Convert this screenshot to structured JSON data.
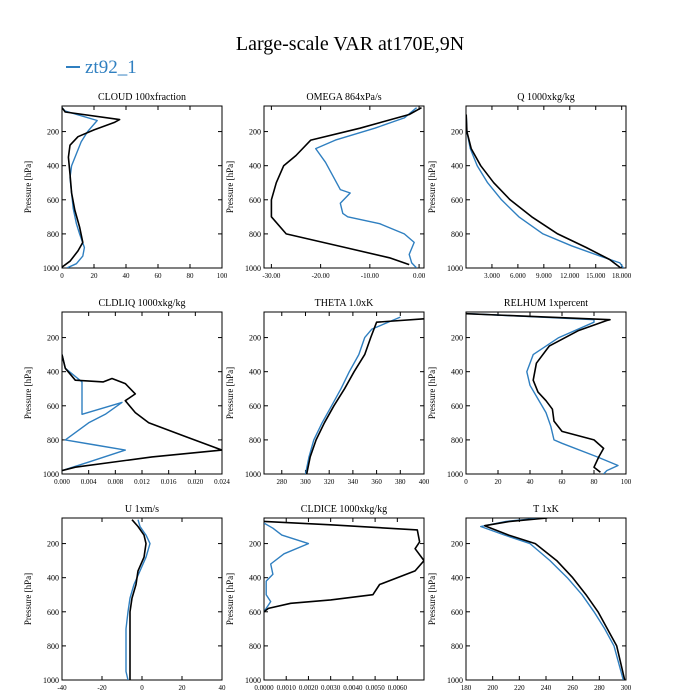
{
  "page_title": "Large-scale VAR at170E,9N",
  "legend": {
    "label": "zt92_1",
    "color": "#2f7fc0"
  },
  "colors": {
    "series_1": "#2f7fc0",
    "series_2": "#000000"
  },
  "chart_data": [
    {
      "type": "line",
      "title": "CLOUD  100xfraction",
      "ylabel": "Pressure [hPa]",
      "xlim": [
        0,
        100
      ],
      "ylim": [
        1000,
        50
      ],
      "y_inverted": true,
      "xticks": [
        "0",
        "20",
        "40",
        "60",
        "80",
        "100"
      ],
      "yticks": [
        "200",
        "400",
        "600",
        "800",
        "1000"
      ],
      "series": [
        {
          "name": "zt92_1",
          "color": "#2f7fc0",
          "x": [
            0,
            2,
            22,
            16,
            12,
            9,
            6,
            5,
            6,
            7,
            9,
            11,
            14,
            13,
            9,
            3
          ],
          "y": [
            60,
            80,
            135,
            200,
            260,
            330,
            400,
            470,
            560,
            650,
            740,
            800,
            880,
            930,
            975,
            1000
          ]
        },
        {
          "x": [
            0,
            2,
            36,
            33,
            20,
            10,
            5,
            4,
            5,
            6,
            8,
            11,
            13,
            10,
            5,
            0
          ],
          "y": [
            60,
            85,
            130,
            145,
            190,
            230,
            280,
            350,
            450,
            560,
            660,
            760,
            850,
            900,
            960,
            995
          ]
        }
      ]
    },
    {
      "type": "line",
      "title": "OMEGA  864xPa/s",
      "ylabel": "Pressure [hPa]",
      "xlim": [
        -31.5,
        1
      ],
      "ylim": [
        1000,
        50
      ],
      "y_inverted": true,
      "xticks": [
        "-30.00",
        "-20.00",
        "-10.00",
        "0.00"
      ],
      "yticks": [
        "200",
        "400",
        "600",
        "800",
        "1000"
      ],
      "series": [
        {
          "name": "zt92_1",
          "color": "#2f7fc0",
          "x": [
            -0.5,
            -3,
            -9,
            -17,
            -21,
            -19,
            -17.5,
            -16,
            -14,
            -16,
            -15.5,
            -14.5,
            -8,
            -3,
            -1,
            -2,
            -1.5,
            -0.5
          ],
          "y": [
            60,
            120,
            180,
            250,
            300,
            380,
            460,
            540,
            560,
            620,
            680,
            700,
            740,
            800,
            850,
            920,
            970,
            1000
          ]
        },
        {
          "x": [
            0.5,
            -2,
            -12,
            -22,
            -25,
            -27.5,
            -29,
            -30,
            -30,
            -27,
            -15,
            -6,
            -2
          ],
          "y": [
            60,
            100,
            180,
            250,
            340,
            400,
            500,
            600,
            700,
            800,
            880,
            940,
            980
          ]
        }
      ]
    },
    {
      "type": "line",
      "title": "Q  1000xkg/kg",
      "ylabel": "Pressure [hPa]",
      "xlim": [
        0,
        18.5
      ],
      "ylim": [
        1000,
        50
      ],
      "y_inverted": true,
      "xticks": [
        "3.000",
        "6.000",
        "9.000",
        "12.000",
        "15.000",
        "18.000"
      ],
      "yticks": [
        "200",
        "400",
        "600",
        "800",
        "1000"
      ],
      "series": [
        {
          "name": "zt92_1",
          "color": "#2f7fc0",
          "x": [
            0.02,
            0.1,
            0.5,
            1.3,
            2.5,
            4.1,
            6.1,
            8.9,
            12.2,
            15.5,
            17.8,
            18.2
          ],
          "y": [
            100,
            200,
            300,
            400,
            500,
            600,
            700,
            800,
            870,
            930,
            970,
            1000
          ]
        },
        {
          "x": [
            0.02,
            0.1,
            0.6,
            1.7,
            3.2,
            5.1,
            7.6,
            10.6,
            13.9,
            16.6,
            17.9
          ],
          "y": [
            100,
            200,
            300,
            400,
            500,
            600,
            700,
            800,
            880,
            950,
            1000
          ]
        }
      ]
    },
    {
      "type": "line",
      "title": "CLDLIQ  1000xkg/kg",
      "ylabel": "Pressure [hPa]",
      "xlim": [
        0,
        0.024
      ],
      "ylim": [
        1000,
        50
      ],
      "y_inverted": true,
      "xticks": [
        "0.000",
        "0.004",
        "0.008",
        "0.012",
        "0.016",
        "0.020",
        "0.024"
      ],
      "yticks": [
        "200",
        "400",
        "600",
        "800",
        "1000"
      ],
      "series": [
        {
          "name": "zt92_1",
          "color": "#2f7fc0",
          "x": [
            0,
            0.0005,
            0.003,
            0.003,
            0.009,
            0.0065,
            0.004,
            0.0005,
            0.005,
            0.0095,
            0.004,
            0
          ],
          "y": [
            300,
            380,
            460,
            650,
            580,
            650,
            700,
            800,
            830,
            860,
            930,
            980
          ]
        },
        {
          "x": [
            0,
            0.0005,
            0.002,
            0.0062,
            0.0075,
            0.0095,
            0.011,
            0.0095,
            0.011,
            0.013,
            0.0185,
            0.024,
            0.0135,
            0.002,
            0
          ],
          "y": [
            300,
            380,
            450,
            460,
            440,
            470,
            530,
            570,
            640,
            700,
            780,
            860,
            900,
            960,
            980
          ]
        }
      ]
    },
    {
      "type": "line",
      "title": "THETA  1.0xK",
      "ylabel": "Pressure [hPa]",
      "xlim": [
        265,
        400
      ],
      "ylim": [
        1000,
        50
      ],
      "y_inverted": true,
      "xticks": [
        "280",
        "300",
        "320",
        "340",
        "360",
        "380",
        "400"
      ],
      "yticks": [
        "200",
        "400",
        "600",
        "800",
        "1000"
      ],
      "series": [
        {
          "name": "zt92_1",
          "color": "#2f7fc0",
          "x": [
            380,
            356,
            350,
            345,
            337,
            330,
            322,
            314,
            307,
            303,
            300
          ],
          "y": [
            80,
            150,
            200,
            300,
            400,
            500,
            600,
            700,
            800,
            900,
            1000
          ]
        },
        {
          "x": [
            400,
            360,
            355,
            350,
            341,
            333,
            324,
            316,
            309,
            304,
            301
          ],
          "y": [
            90,
            110,
            200,
            300,
            400,
            500,
            600,
            700,
            800,
            900,
            1000
          ]
        }
      ]
    },
    {
      "type": "line",
      "title": "RELHUM  1xpercent",
      "ylabel": "Pressure [hPa]",
      "xlim": [
        0,
        100
      ],
      "ylim": [
        1000,
        50
      ],
      "y_inverted": true,
      "xticks": [
        "0",
        "20",
        "40",
        "60",
        "80",
        "100"
      ],
      "yticks": [
        "200",
        "400",
        "600",
        "800",
        "1000"
      ],
      "series": [
        {
          "name": "zt92_1",
          "color": "#2f7fc0",
          "x": [
            2,
            80,
            80,
            58,
            42,
            38,
            40,
            45,
            50,
            53,
            55,
            60,
            82,
            95,
            88,
            86
          ],
          "y": [
            60,
            95,
            110,
            200,
            300,
            400,
            480,
            560,
            640,
            720,
            800,
            820,
            900,
            950,
            980,
            1000
          ]
        },
        {
          "x": [
            0,
            90,
            88,
            70,
            52,
            44,
            42,
            45,
            50,
            54,
            55,
            60,
            80,
            86,
            83,
            80,
            84
          ],
          "y": [
            60,
            95,
            100,
            160,
            250,
            350,
            450,
            520,
            570,
            620,
            690,
            750,
            800,
            850,
            900,
            960,
            990
          ]
        }
      ]
    },
    {
      "type": "line",
      "title": "U  1xm/s",
      "ylabel": "Pressure [hPa]",
      "xlim": [
        -40,
        40
      ],
      "ylim": [
        1000,
        50
      ],
      "y_inverted": true,
      "xticks": [
        "-40",
        "-20",
        "0",
        "20",
        "40"
      ],
      "yticks": [
        "200",
        "400",
        "600",
        "800",
        "1000"
      ],
      "series": [
        {
          "name": "zt92_1",
          "color": "#2f7fc0",
          "x": [
            -2,
            -1,
            2,
            4,
            2,
            -1,
            -4,
            -6,
            -7,
            -8,
            -8,
            -8,
            -7
          ],
          "y": [
            60,
            100,
            150,
            200,
            280,
            360,
            440,
            520,
            600,
            700,
            800,
            950,
            1000
          ]
        },
        {
          "x": [
            -5,
            -2,
            1,
            2,
            1,
            -2,
            -3,
            -5,
            -6,
            -6,
            -6,
            -6,
            -6
          ],
          "y": [
            60,
            100,
            150,
            200,
            280,
            360,
            440,
            520,
            600,
            700,
            800,
            900,
            1000
          ]
        }
      ]
    },
    {
      "type": "line",
      "title": "CLDICE  1000xkg/kg",
      "ylabel": "Pressure [hPa]",
      "xlim": [
        0,
        0.0072
      ],
      "ylim": [
        1000,
        50
      ],
      "y_inverted": true,
      "xticks": [
        "0.0000",
        "0.0010",
        "0.0020",
        "0.0030",
        "0.0040",
        "0.0050",
        "0.0060"
      ],
      "yticks": [
        "200",
        "400",
        "600",
        "800",
        "1000"
      ],
      "series": [
        {
          "name": "zt92_1",
          "color": "#2f7fc0",
          "x": [
            0,
            0.0004,
            0.0008,
            0.002,
            0.0009,
            0.0003,
            0.0004,
            0.0001,
            0.0001,
            0.0001,
            0.0003,
            0.0001,
            0
          ],
          "y": [
            80,
            110,
            150,
            200,
            260,
            320,
            380,
            420,
            460,
            500,
            540,
            580,
            600
          ]
        },
        {
          "x": [
            0,
            0.003,
            0.0069,
            0.007,
            0.0068,
            0.0072,
            0.0068,
            0.0052,
            0.0049,
            0.003,
            0.0012,
            0.0002,
            0
          ],
          "y": [
            70,
            90,
            120,
            190,
            230,
            300,
            360,
            440,
            500,
            530,
            550,
            580,
            600
          ]
        }
      ]
    },
    {
      "type": "line",
      "title": "T  1xK",
      "ylabel": "Pressure [hPa]",
      "xlim": [
        180,
        300
      ],
      "ylim": [
        1000,
        50
      ],
      "y_inverted": true,
      "xticks": [
        "180",
        "200",
        "220",
        "240",
        "260",
        "280",
        "300"
      ],
      "yticks": [
        "200",
        "400",
        "600",
        "800",
        "1000"
      ],
      "series": [
        {
          "name": "zt92_1",
          "color": "#2f7fc0",
          "x": [
            236,
            210,
            191,
            209,
            228,
            243,
            256,
            267,
            276,
            284,
            291,
            298
          ],
          "y": [
            50,
            70,
            100,
            150,
            200,
            300,
            400,
            500,
            600,
            700,
            800,
            1000
          ]
        },
        {
          "x": [
            241,
            213,
            194,
            212,
            232,
            248,
            260,
            270,
            279,
            286,
            293,
            299
          ],
          "y": [
            50,
            70,
            95,
            150,
            200,
            300,
            400,
            500,
            600,
            700,
            800,
            1000
          ]
        }
      ]
    }
  ]
}
